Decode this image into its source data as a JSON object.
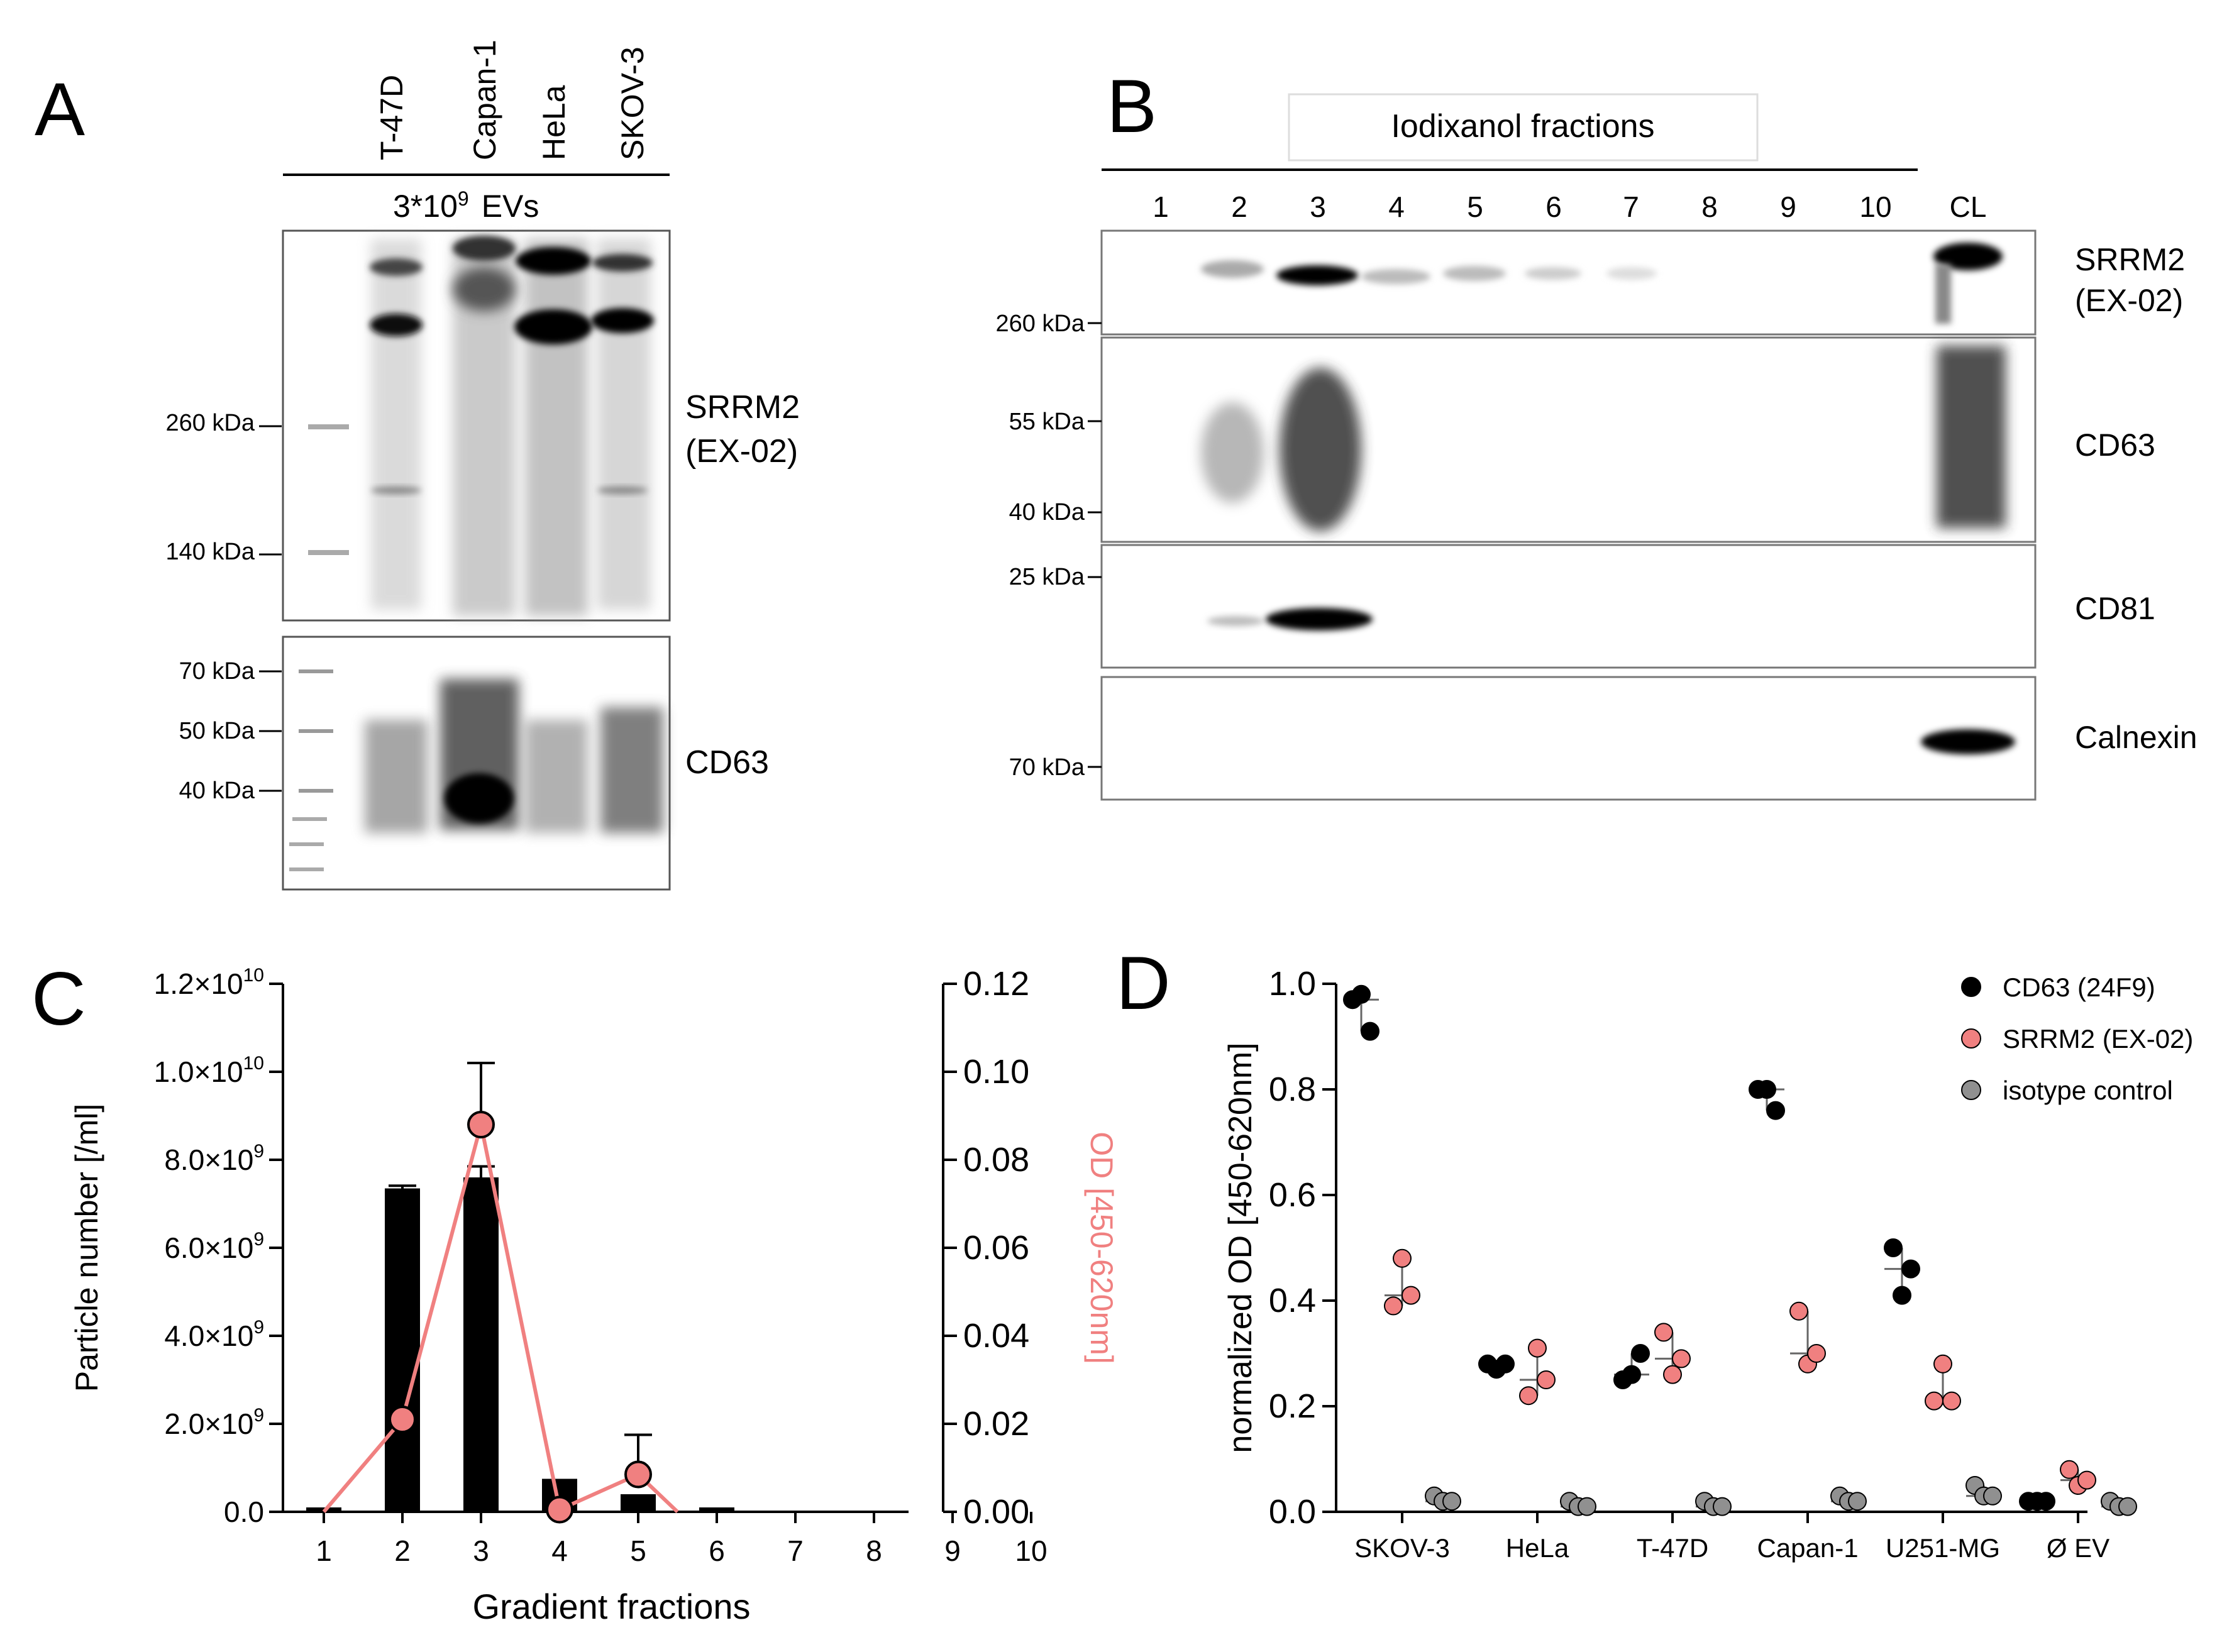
{
  "panel_a": {
    "letter": "A",
    "lanes": [
      "T-47D",
      "Capan-1",
      "HeLa",
      "SKOV-3"
    ],
    "load_base": "3*10",
    "load_exp": "9",
    "load_suffix": "EVs",
    "blot1_markers": [
      "260 kDa",
      "140 kDa"
    ],
    "blot1_label_line1": "SRRM2",
    "blot1_label_line2": "(EX-02)",
    "blot2_markers": [
      "70 kDa",
      "50 kDa",
      "40 kDa"
    ],
    "blot2_label": "CD63"
  },
  "panel_b": {
    "letter": "B",
    "header": "Iodixanol fractions",
    "lanes": [
      "1",
      "2",
      "3",
      "4",
      "5",
      "6",
      "7",
      "8",
      "9",
      "10",
      "CL"
    ],
    "blot1_marker": "260 kDa",
    "blot1_label_line1": "SRRM2",
    "blot1_label_line2": "(EX-02)",
    "blot2_markers": [
      "55 kDa",
      "40 kDa"
    ],
    "blot2_label": "CD63",
    "blot3_marker": "25 kDa",
    "blot3_label": "CD81",
    "blot4_marker": "70 kDa",
    "blot4_label": "Calnexin"
  },
  "chart_data": [
    {
      "panel": "C",
      "type": "bar",
      "xlabel": "Gradient fractions",
      "ylabel": "Particle number [/ml]",
      "y2label": "OD [450-620nm]",
      "categories": [
        "1",
        "2",
        "3",
        "4",
        "5",
        "6",
        "7",
        "8",
        "9",
        "10"
      ],
      "ylim": [
        0,
        12000000000
      ],
      "y2lim": [
        0,
        0.12
      ],
      "yticks": [
        {
          "mant": "0.0",
          "exp": ""
        },
        {
          "mant": "2.0×10",
          "exp": "9"
        },
        {
          "mant": "4.0×10",
          "exp": "9"
        },
        {
          "mant": "6.0×10",
          "exp": "9"
        },
        {
          "mant": "8.0×10",
          "exp": "9"
        },
        {
          "mant": "1.0×10",
          "exp": "10"
        },
        {
          "mant": "1.2×10",
          "exp": "10"
        }
      ],
      "y2ticks": [
        "0.00",
        "0.02",
        "0.04",
        "0.06",
        "0.08",
        "0.10",
        "0.12"
      ],
      "series": [
        {
          "name": "Particle number",
          "kind": "bar",
          "color": "#000000",
          "values": [
            100000000,
            7350000000,
            7600000000,
            750000000,
            400000000,
            100000000,
            0,
            0,
            0,
            0
          ],
          "error": [
            0,
            60000000,
            250000000,
            0,
            0,
            0,
            0,
            0,
            0,
            0
          ]
        },
        {
          "name": "OD [450-620nm]",
          "kind": "line",
          "color": "#F08080",
          "x": [
            1,
            2,
            3,
            4,
            5,
            5.5
          ],
          "values": [
            0.0,
            0.021,
            0.088,
            0.0005,
            0.0085,
            0.0
          ],
          "markers": [
            false,
            true,
            true,
            true,
            true,
            false
          ],
          "error": [
            0,
            0,
            0.014,
            0,
            0.009,
            0
          ]
        }
      ]
    },
    {
      "panel": "D",
      "type": "scatter",
      "ylabel": "normalized OD [450-620nm]",
      "categories": [
        "SKOV-3",
        "HeLa",
        "T-47D",
        "Capan-1",
        "U251-MG",
        "Ø EV"
      ],
      "ylim": [
        0,
        1.0
      ],
      "yticks": [
        "0.0",
        "0.2",
        "0.4",
        "0.6",
        "0.8",
        "1.0"
      ],
      "series": [
        {
          "name": "CD63 (24F9)",
          "color": "#000000",
          "values": [
            [
              0.97,
              0.98,
              0.91
            ],
            [
              0.28,
              0.27,
              0.28
            ],
            [
              0.25,
              0.26,
              0.3
            ],
            [
              0.8,
              0.8,
              0.76
            ],
            [
              0.5,
              0.41,
              0.46
            ],
            [
              0.02,
              0.02,
              0.02
            ]
          ],
          "median": [
            0.97,
            0.28,
            0.26,
            0.8,
            0.46,
            0.02
          ]
        },
        {
          "name": "SRRM2 (EX-02)",
          "color": "#F08080",
          "values": [
            [
              0.39,
              0.48,
              0.41
            ],
            [
              0.22,
              0.31,
              0.25
            ],
            [
              0.34,
              0.26,
              0.29
            ],
            [
              0.38,
              0.28,
              0.3
            ],
            [
              0.21,
              0.28,
              0.21
            ],
            [
              0.08,
              0.05,
              0.06
            ]
          ],
          "median": [
            0.41,
            0.25,
            0.29,
            0.3,
            0.21,
            0.06
          ]
        },
        {
          "name": "isotype control",
          "color": "#909090",
          "values": [
            [
              0.03,
              0.02,
              0.02
            ],
            [
              0.02,
              0.01,
              0.01
            ],
            [
              0.02,
              0.01,
              0.01
            ],
            [
              0.03,
              0.02,
              0.02
            ],
            [
              0.05,
              0.03,
              0.03
            ],
            [
              0.02,
              0.01,
              0.01
            ]
          ],
          "median": [
            0.02,
            0.01,
            0.01,
            0.02,
            0.03,
            0.01
          ]
        }
      ]
    }
  ]
}
